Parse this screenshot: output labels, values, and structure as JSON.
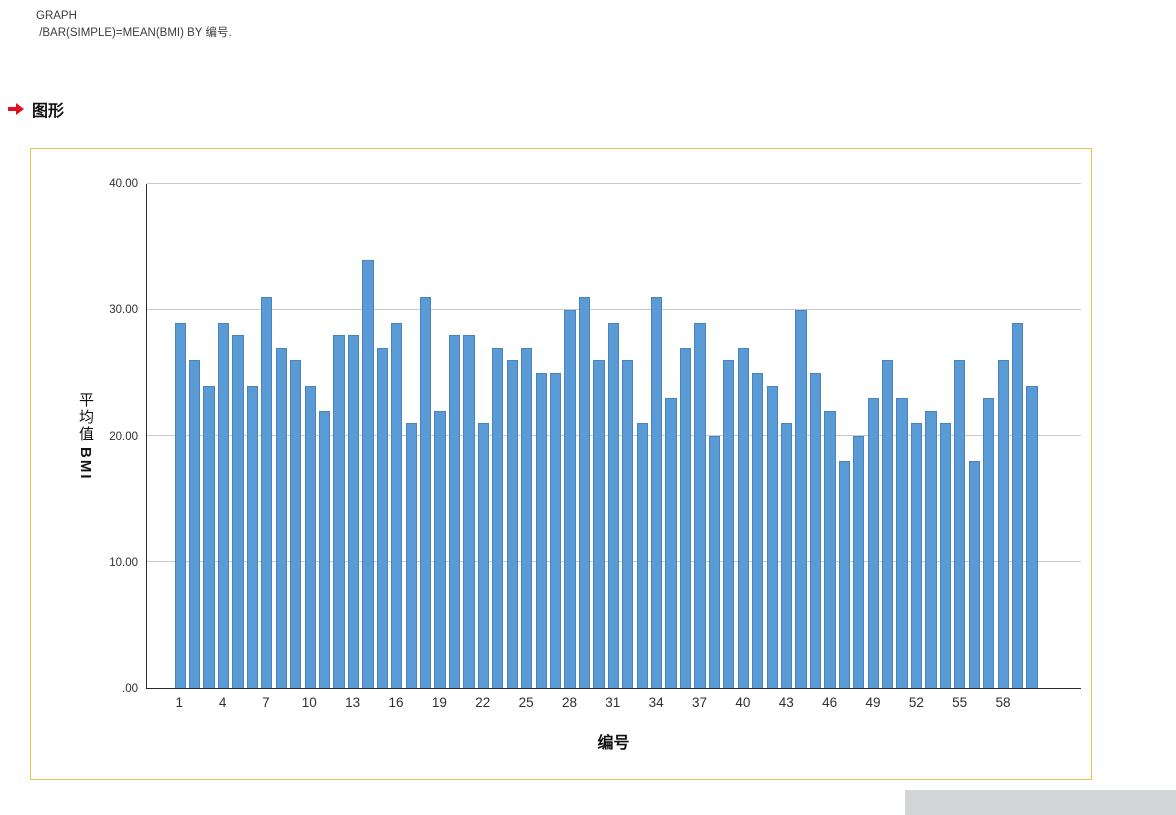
{
  "syntax": {
    "line1": "GRAPH",
    "line2": " /BAR(SIMPLE)=MEAN(BMI) BY 编号."
  },
  "section": {
    "title": "图形"
  },
  "chart_data": {
    "type": "bar",
    "title": "",
    "xlabel": "编号",
    "ylabel": "平均值 BMI",
    "ylabel_cjk": "平均值",
    "ylabel_latin": "BMI",
    "categories": [
      1,
      2,
      3,
      4,
      5,
      6,
      7,
      8,
      9,
      10,
      11,
      12,
      13,
      14,
      15,
      16,
      17,
      18,
      19,
      20,
      21,
      22,
      23,
      24,
      25,
      26,
      27,
      28,
      29,
      30,
      31,
      32,
      33,
      34,
      35,
      36,
      37,
      38,
      39,
      40,
      41,
      42,
      43,
      44,
      45,
      46,
      47,
      48,
      49,
      50,
      51,
      52,
      53,
      54,
      55,
      56,
      57,
      58,
      59,
      60
    ],
    "values": [
      29,
      26,
      24,
      29,
      28,
      24,
      31,
      27,
      26,
      24,
      22,
      28,
      28,
      34,
      27,
      29,
      21,
      31,
      22,
      28,
      28,
      21,
      27,
      26,
      27,
      25,
      25,
      30,
      31,
      26,
      29,
      26,
      21,
      31,
      23,
      27,
      29,
      20,
      26,
      27,
      25,
      24,
      21,
      30,
      25,
      22,
      18,
      20,
      23,
      26,
      23,
      21,
      22,
      21,
      26,
      18,
      23,
      26,
      29,
      24
    ],
    "xticks": [
      1,
      4,
      7,
      10,
      13,
      16,
      19,
      22,
      25,
      28,
      31,
      34,
      37,
      40,
      43,
      46,
      49,
      52,
      55,
      58
    ],
    "yticks": [
      ".00",
      "10.00",
      "20.00",
      "30.00",
      "40.00"
    ],
    "ylim": [
      0,
      40
    ],
    "grid": "horizontal",
    "legend": "none",
    "bar_color": "#5b9bd5",
    "frame_color": "#f0c24b"
  }
}
